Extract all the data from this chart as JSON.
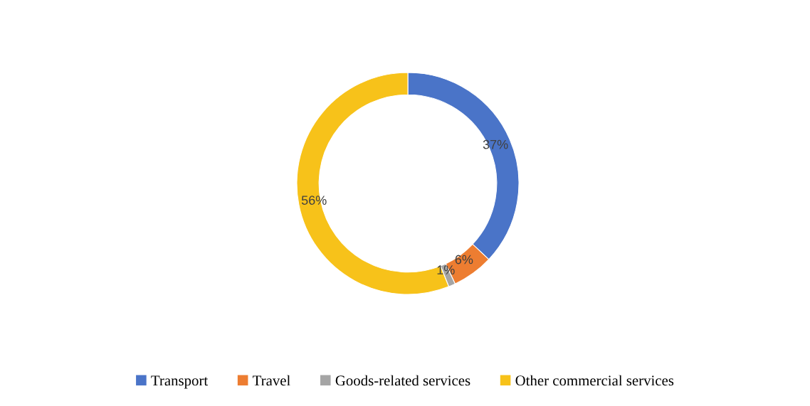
{
  "chart_data": {
    "type": "donut",
    "categories": [
      "Transport",
      "Travel",
      "Goods-related services",
      "Other commercial services"
    ],
    "values": [
      37,
      6,
      1,
      56
    ],
    "colors": [
      "#4a74c8",
      "#ed7d31",
      "#a5a5a5",
      "#f7c21a"
    ],
    "value_labels": [
      "37%",
      "6%",
      "1%",
      "56%"
    ],
    "legend": "bottom"
  }
}
